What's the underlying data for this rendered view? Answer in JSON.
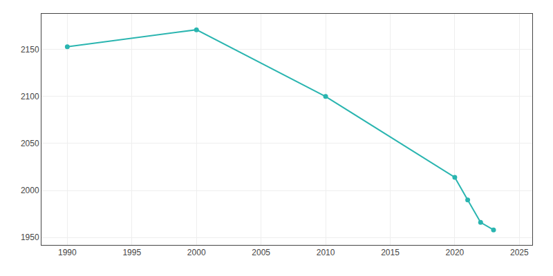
{
  "chart_data": {
    "type": "line",
    "x": [
      1990,
      2000,
      2010,
      2020,
      2021,
      2022,
      2023
    ],
    "values": [
      2153,
      2171,
      2100,
      2014,
      1990,
      1966,
      1958
    ],
    "color": "#2ab5b0",
    "marker": "circle",
    "xlim": [
      1988,
      2026
    ],
    "ylim": [
      1942,
      2188
    ],
    "xticks": [
      1990,
      1995,
      2000,
      2005,
      2010,
      2015,
      2020,
      2025
    ],
    "yticks": [
      1950,
      2000,
      2050,
      2100,
      2150
    ],
    "grid": true
  }
}
